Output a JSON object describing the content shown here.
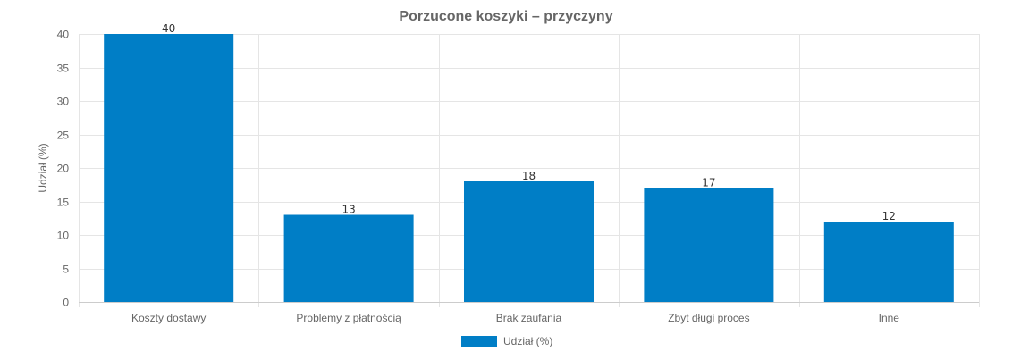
{
  "chart_data": {
    "type": "bar",
    "title": "Porzucone koszyki – przyczyny",
    "xlabel": "",
    "ylabel": "Udział (%)",
    "categories": [
      "Koszty dostawy",
      "Problemy z płatnością",
      "Brak zaufania",
      "Zbyt długi proces",
      "Inne"
    ],
    "series": [
      {
        "name": "Udział (%)",
        "values": [
          40,
          13,
          18,
          17,
          12
        ],
        "color": "#007ec6"
      }
    ],
    "ylim": [
      0,
      40
    ],
    "yticks": [
      0,
      5,
      10,
      15,
      20,
      25,
      30,
      35,
      40
    ],
    "grid": true,
    "legend_position": "bottom",
    "data_labels": true
  }
}
